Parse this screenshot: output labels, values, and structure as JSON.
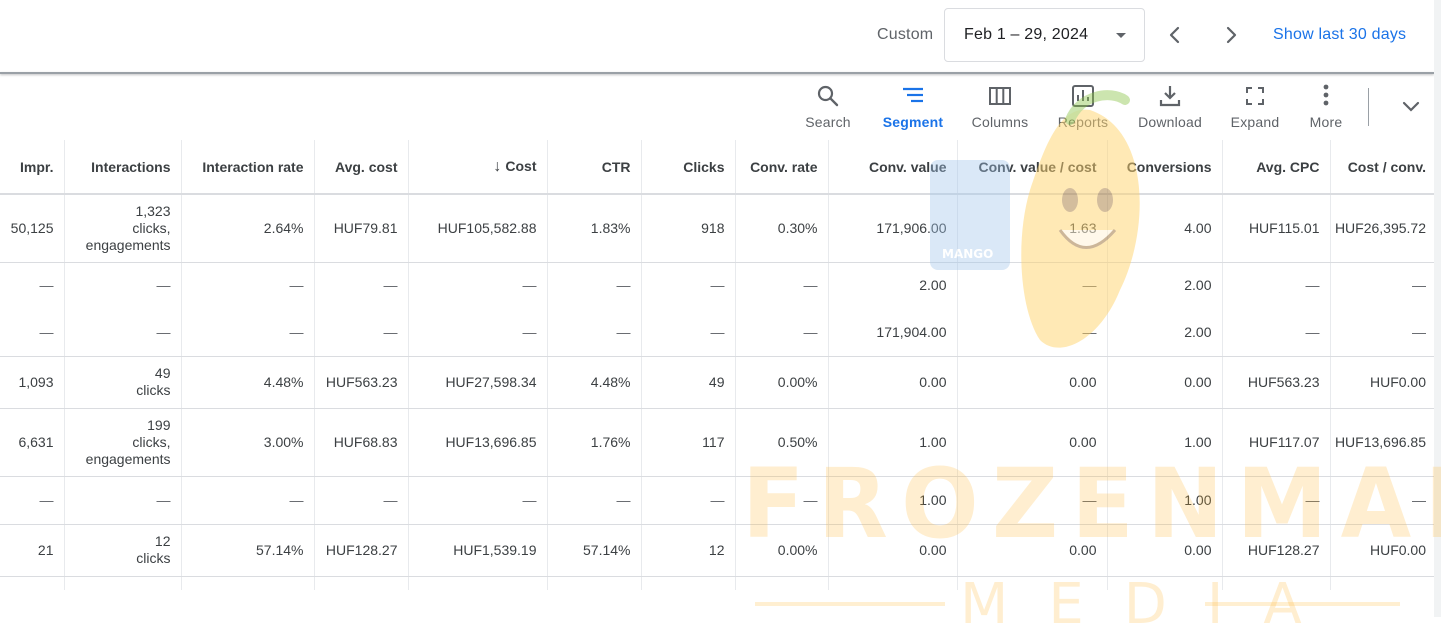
{
  "datebar": {
    "preset_label": "Custom",
    "range_label": "Feb 1 – 29, 2024",
    "show_last_label": "Show last 30 days"
  },
  "toolbar": {
    "search": "Search",
    "segment": "Segment",
    "columns": "Columns",
    "reports": "Reports",
    "download": "Download",
    "expand": "Expand",
    "more": "More",
    "active": "Segment",
    "accent_color": "#1a73e8"
  },
  "table": {
    "headers": {
      "impr": "Impr.",
      "interactions": "Interactions",
      "interaction_rate": "Interaction rate",
      "avg_cost": "Avg. cost",
      "cost": "Cost",
      "ctr": "CTR",
      "clicks": "Clicks",
      "conv_rate": "Conv. rate",
      "conv_value": "Conv. value",
      "conv_value_cost": "Conv. value / cost",
      "conversions": "Conversions",
      "avg_cpc": "Avg. CPC",
      "cost_conv": "Cost / conv."
    },
    "sorted_column": "Cost",
    "rows": [
      {
        "impr": "50,125",
        "interactions": "1,323",
        "interactions_l2": "clicks,",
        "interactions_l3": "engagements",
        "interaction_rate": "2.64%",
        "avg_cost": "HUF79.81",
        "cost": "HUF105,582.88",
        "ctr": "1.83%",
        "clicks": "918",
        "conv_rate": "0.30%",
        "conv_value": "171,906.00",
        "conv_value_cost": "1.63",
        "conversions": "4.00",
        "avg_cpc": "HUF115.01",
        "cost_conv": "HUF26,395.72"
      },
      {
        "impr": "—",
        "interactions": "—",
        "interaction_rate": "—",
        "avg_cost": "—",
        "cost": "—",
        "ctr": "—",
        "clicks": "—",
        "conv_rate": "—",
        "conv_value": "2.00",
        "conv_value_cost": "—",
        "conversions": "2.00",
        "avg_cpc": "—",
        "cost_conv": "—"
      },
      {
        "impr": "—",
        "interactions": "—",
        "interaction_rate": "—",
        "avg_cost": "—",
        "cost": "—",
        "ctr": "—",
        "clicks": "—",
        "conv_rate": "—",
        "conv_value": "171,904.00",
        "conv_value_cost": "—",
        "conversions": "2.00",
        "avg_cpc": "—",
        "cost_conv": "—"
      },
      {
        "impr": "1,093",
        "interactions": "49",
        "interactions_l2": "clicks",
        "interaction_rate": "4.48%",
        "avg_cost": "HUF563.23",
        "cost": "HUF27,598.34",
        "ctr": "4.48%",
        "clicks": "49",
        "conv_rate": "0.00%",
        "conv_value": "0.00",
        "conv_value_cost": "0.00",
        "conversions": "0.00",
        "avg_cpc": "HUF563.23",
        "cost_conv": "HUF0.00"
      },
      {
        "impr": "6,631",
        "interactions": "199",
        "interactions_l2": "clicks,",
        "interactions_l3": "engagements",
        "interaction_rate": "3.00%",
        "avg_cost": "HUF68.83",
        "cost": "HUF13,696.85",
        "ctr": "1.76%",
        "clicks": "117",
        "conv_rate": "0.50%",
        "conv_value": "1.00",
        "conv_value_cost": "0.00",
        "conversions": "1.00",
        "avg_cpc": "HUF117.07",
        "cost_conv": "HUF13,696.85"
      },
      {
        "impr": "—",
        "interactions": "—",
        "interaction_rate": "—",
        "avg_cost": "—",
        "cost": "—",
        "ctr": "—",
        "clicks": "—",
        "conv_rate": "—",
        "conv_value": "1.00",
        "conv_value_cost": "—",
        "conversions": "1.00",
        "avg_cpc": "—",
        "cost_conv": "—"
      },
      {
        "impr": "21",
        "interactions": "12",
        "interactions_l2": "clicks",
        "interaction_rate": "57.14%",
        "avg_cost": "HUF128.27",
        "cost": "HUF1,539.19",
        "ctr": "57.14%",
        "clicks": "12",
        "conv_rate": "0.00%",
        "conv_value": "0.00",
        "conv_value_cost": "0.00",
        "conversions": "0.00",
        "avg_cpc": "HUF128.27",
        "cost_conv": "HUF0.00"
      }
    ]
  },
  "watermark": {
    "line1": "FROZENMANGO",
    "line2": "MEDIA",
    "mug_text": "MANGO",
    "color": "#ffb52e"
  }
}
